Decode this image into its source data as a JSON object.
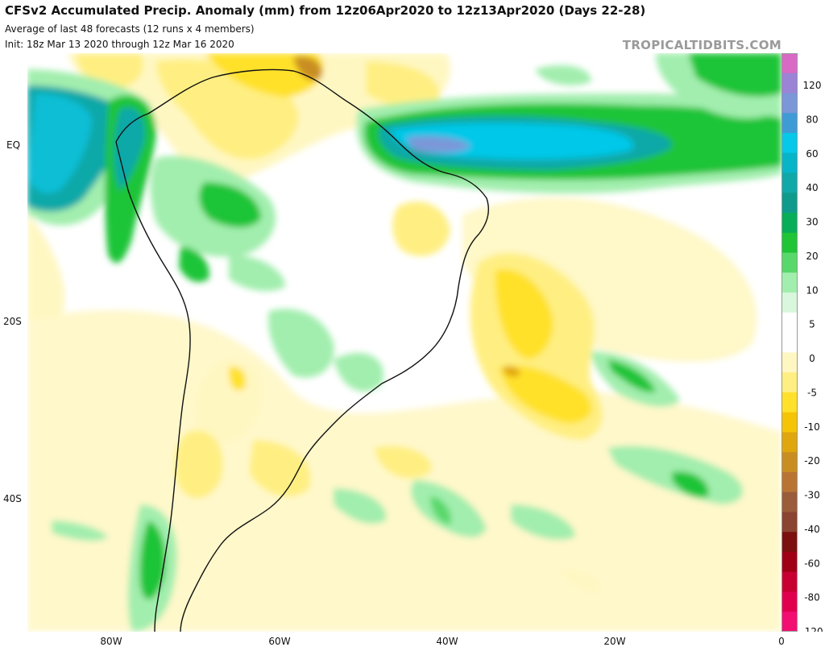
{
  "header": {
    "title": "CFSv2 Accumulated Precip. Anomaly (mm) from 12z06Apr2020 to 12z13Apr2020 (Days 22-28)",
    "subtitle_1": "Average of last 48 forecasts (12 runs x 4 members)",
    "subtitle_2": "Init: 18z Mar 13 2020 through 12z Mar 16 2020",
    "brand": "TROPICALTIDBITS.COM"
  },
  "map": {
    "region": "South America and South Atlantic",
    "lat_labels": [
      "EQ",
      "20S",
      "40S"
    ],
    "lon_labels": [
      "80W",
      "60W",
      "40W",
      "20W",
      "0"
    ]
  },
  "legend": {
    "labels": [
      "120",
      "80",
      "60",
      "40",
      "30",
      "20",
      "10",
      "5",
      "0",
      "-5",
      "-10",
      "-20",
      "-30",
      "-40",
      "-60",
      "-80",
      "-120"
    ],
    "colors": [
      "#d86ac6",
      "#9b83d6",
      "#7b97d8",
      "#3f9bd6",
      "#06c8e8",
      "#08b4c8",
      "#10a8a8",
      "#0e9b8c",
      "#08ad58",
      "#1fc437",
      "#58d86a",
      "#a2eeae",
      "#d8f7dc",
      "#ffffff",
      "#ffffff",
      "#fff7c2",
      "#ffef82",
      "#ffe12b",
      "#f5c407",
      "#e0a60e",
      "#c98e22",
      "#b97433",
      "#9a5c3b",
      "#8a4431",
      "#7c1010",
      "#a00016",
      "#c80032",
      "#e1004e",
      "#f30e72"
    ]
  }
}
